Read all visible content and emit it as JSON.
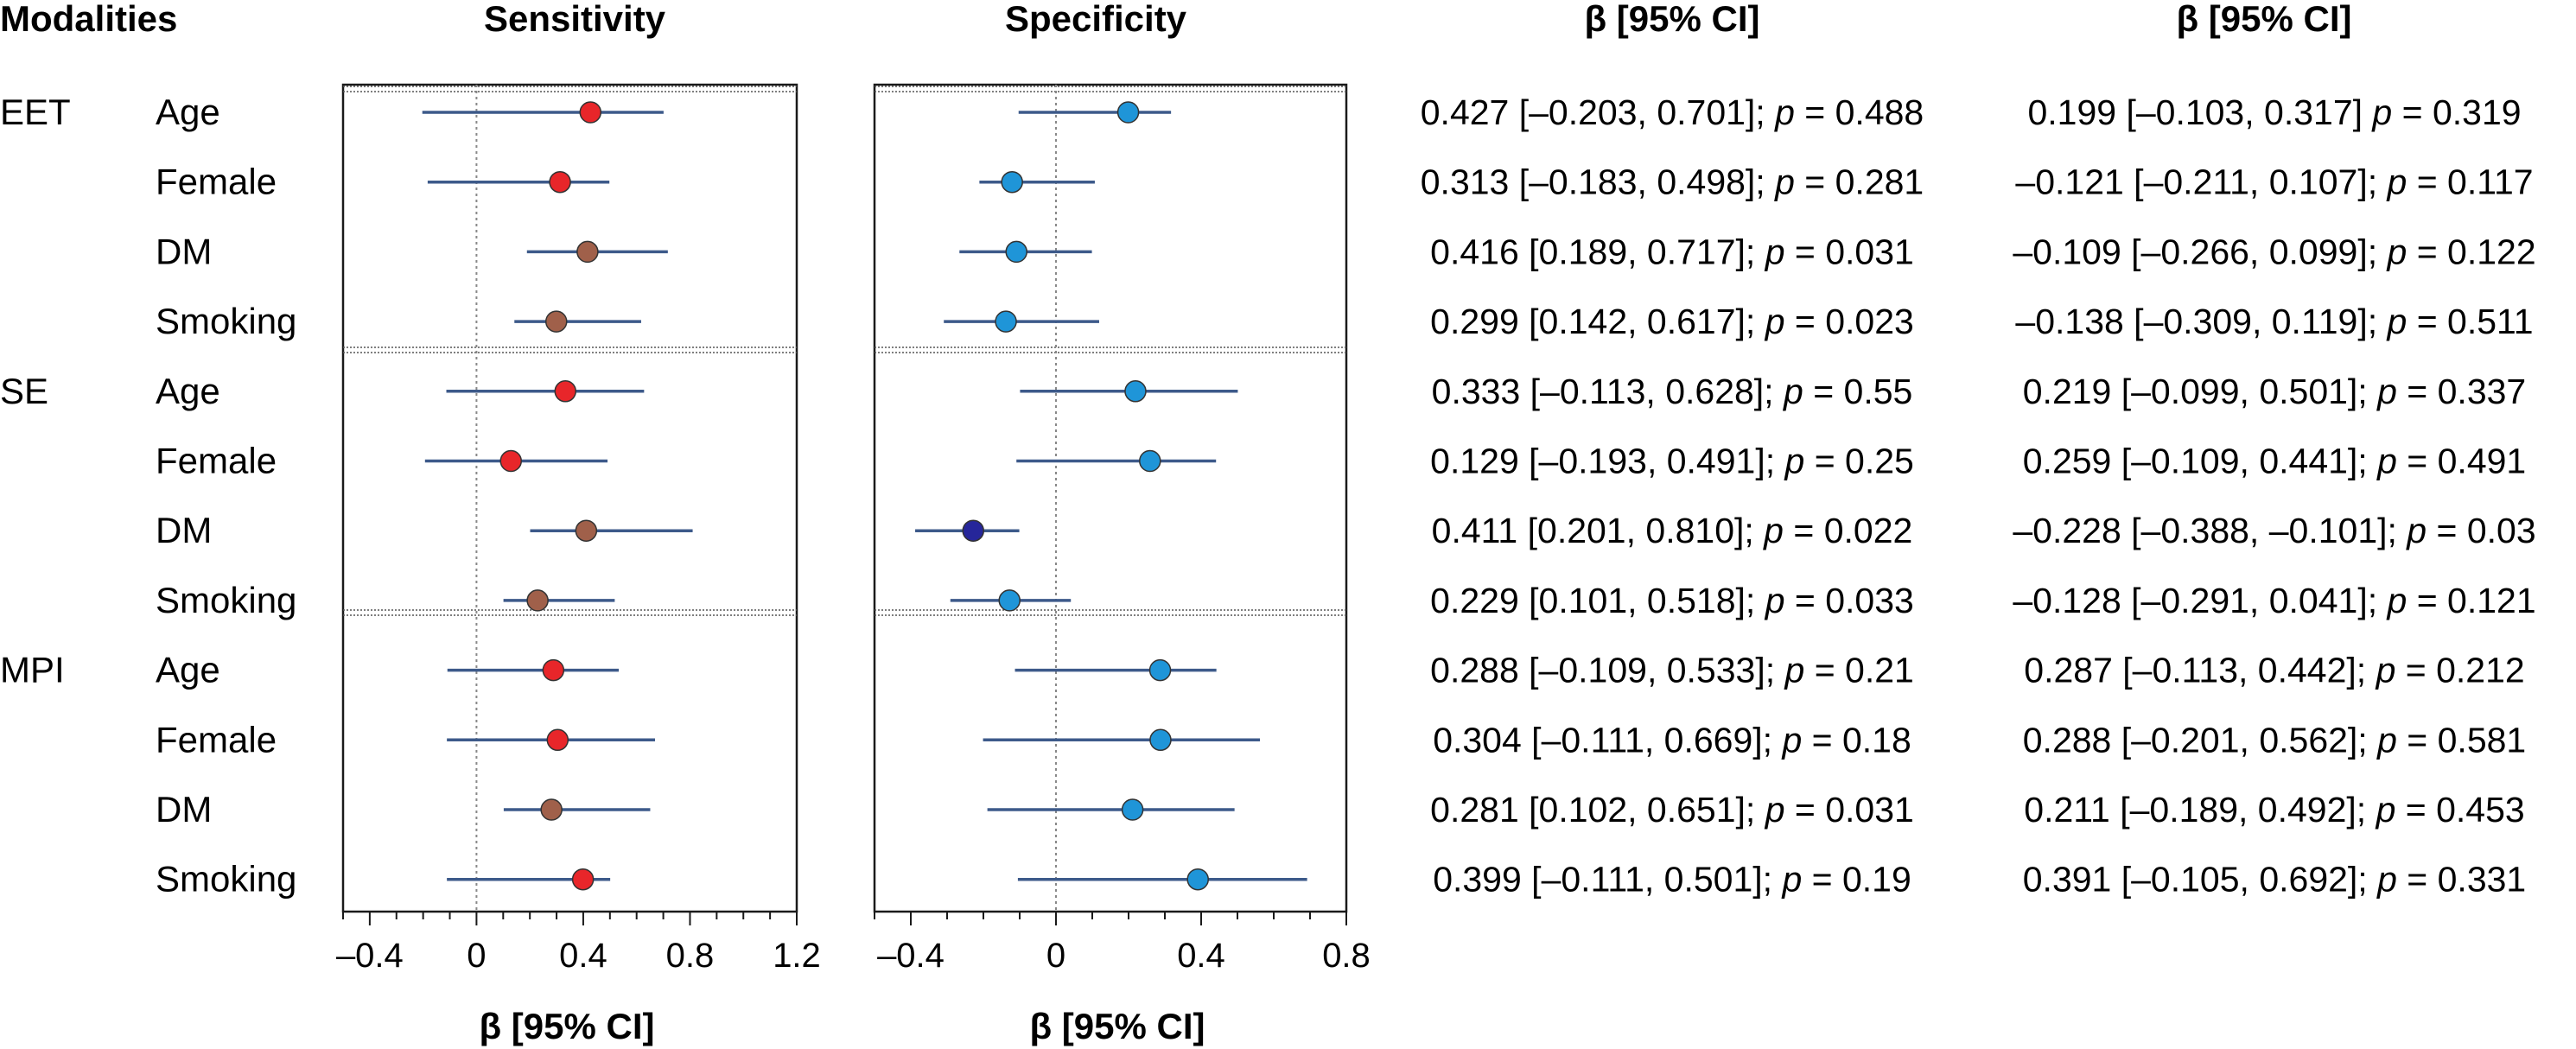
{
  "headers": {
    "modalities": "Modalities",
    "sensitivity": "Sensitivity",
    "specificity": "Specificity",
    "beta_col1": "β [95% CI]",
    "beta_col2": "β [95% CI]"
  },
  "xlabel_left": "β [95% CI]",
  "xlabel_right": "β [95% CI]",
  "groups": [
    "EET",
    "SE",
    "MPI"
  ],
  "rows": [
    {
      "group": "EET",
      "label": "Age",
      "sens_text": "0.427 [–0.203, 0.701]; p = 0.488",
      "spec_text": "0.199 [–0.103, 0.317] p = 0.319"
    },
    {
      "group": "EET",
      "label": "Female",
      "sens_text": "0.313 [–0.183, 0.498]; p = 0.281",
      "spec_text": "–0.121 [–0.211, 0.107]; p = 0.117"
    },
    {
      "group": "EET",
      "label": "DM",
      "sens_text": "0.416 [0.189, 0.717]; p = 0.031",
      "spec_text": "–0.109 [–0.266, 0.099]; p = 0.122"
    },
    {
      "group": "EET",
      "label": "Smoking",
      "sens_text": "0.299 [0.142, 0.617]; p = 0.023",
      "spec_text": "–0.138 [–0.309, 0.119]; p = 0.511"
    },
    {
      "group": "SE",
      "label": "Age",
      "sens_text": "0.333 [–0.113, 0.628]; p = 0.55",
      "spec_text": "0.219 [–0.099, 0.501]; p = 0.337"
    },
    {
      "group": "SE",
      "label": "Female",
      "sens_text": "0.129 [–0.193, 0.491]; p = 0.25",
      "spec_text": "0.259 [–0.109, 0.441]; p = 0.491"
    },
    {
      "group": "SE",
      "label": "DM",
      "sens_text": "0.411 [0.201, 0.810]; p = 0.022",
      "spec_text": "–0.228 [–0.388, –0.101]; p = 0.03"
    },
    {
      "group": "SE",
      "label": "Smoking",
      "sens_text": "0.229 [0.101, 0.518]; p = 0.033",
      "spec_text": "–0.128 [–0.291, 0.041]; p = 0.121"
    },
    {
      "group": "MPI",
      "label": "Age",
      "sens_text": "0.288 [–0.109, 0.533]; p = 0.21",
      "spec_text": "0.287 [–0.113, 0.442]; p = 0.212"
    },
    {
      "group": "MPI",
      "label": "Female",
      "sens_text": "0.304 [–0.111, 0.669]; p = 0.18",
      "spec_text": "0.288 [–0.201, 0.562]; p = 0.581"
    },
    {
      "group": "MPI",
      "label": "DM",
      "sens_text": "0.281 [0.102, 0.651]; p = 0.031",
      "spec_text": "0.211 [–0.189, 0.492]; p = 0.453"
    },
    {
      "group": "MPI",
      "label": "Smoking",
      "sens_text": "0.399 [–0.111, 0.501]; p = 0.19",
      "spec_text": "0.391 [–0.105, 0.692]; p = 0.331"
    }
  ],
  "colors": {
    "ci_line": "#3d5a8a",
    "red": "#e8262a",
    "brown": "#a0604a",
    "light_blue": "#1f95d8",
    "dark_blue": "#26269a",
    "axis": "#1a1a1a",
    "zero_line": "#888888"
  },
  "chart_data": [
    {
      "type": "forest",
      "title": "Sensitivity",
      "xlabel": "β [95% CI]",
      "xlim": [
        -0.5,
        1.2
      ],
      "xticks": [
        -0.4,
        0,
        0.4,
        0.8,
        1.2
      ],
      "xtick_labels": [
        "–0.4",
        "0",
        "0.4",
        "0.8",
        "1.2"
      ],
      "categories": [
        "EET Age",
        "EET Female",
        "EET DM",
        "EET Smoking",
        "SE Age",
        "SE Female",
        "SE DM",
        "SE Smoking",
        "MPI Age",
        "MPI Female",
        "MPI DM",
        "MPI Smoking"
      ],
      "estimate": [
        0.427,
        0.313,
        0.416,
        0.299,
        0.333,
        0.129,
        0.411,
        0.229,
        0.288,
        0.304,
        0.281,
        0.399
      ],
      "ci_low": [
        -0.203,
        -0.183,
        0.189,
        0.142,
        -0.113,
        -0.193,
        0.201,
        0.101,
        -0.109,
        -0.111,
        0.102,
        -0.111
      ],
      "ci_high": [
        0.701,
        0.498,
        0.717,
        0.617,
        0.628,
        0.491,
        0.81,
        0.518,
        0.533,
        0.669,
        0.651,
        0.501
      ],
      "marker_color": [
        "red",
        "red",
        "brown",
        "brown",
        "red",
        "red",
        "brown",
        "brown",
        "red",
        "red",
        "brown",
        "red"
      ]
    },
    {
      "type": "forest",
      "title": "Specificity",
      "xlabel": "β [95% CI]",
      "xlim": [
        -0.5,
        0.8
      ],
      "xticks": [
        -0.4,
        0,
        0.4,
        0.8
      ],
      "xtick_labels": [
        "–0.4",
        "0",
        "0.4",
        "0.8"
      ],
      "categories": [
        "EET Age",
        "EET Female",
        "EET DM",
        "EET Smoking",
        "SE Age",
        "SE Female",
        "SE DM",
        "SE Smoking",
        "MPI Age",
        "MPI Female",
        "MPI DM",
        "MPI Smoking"
      ],
      "estimate": [
        0.199,
        -0.121,
        -0.109,
        -0.138,
        0.219,
        0.259,
        -0.228,
        -0.128,
        0.287,
        0.288,
        0.211,
        0.391
      ],
      "ci_low": [
        -0.103,
        -0.211,
        -0.266,
        -0.309,
        -0.099,
        -0.109,
        -0.388,
        -0.291,
        -0.113,
        -0.201,
        -0.189,
        -0.105
      ],
      "ci_high": [
        0.317,
        0.107,
        0.099,
        0.119,
        0.501,
        0.441,
        -0.101,
        0.041,
        0.442,
        0.562,
        0.492,
        0.692
      ],
      "marker_color": [
        "light_blue",
        "light_blue",
        "light_blue",
        "light_blue",
        "light_blue",
        "light_blue",
        "dark_blue",
        "light_blue",
        "light_blue",
        "light_blue",
        "light_blue",
        "light_blue"
      ]
    }
  ]
}
